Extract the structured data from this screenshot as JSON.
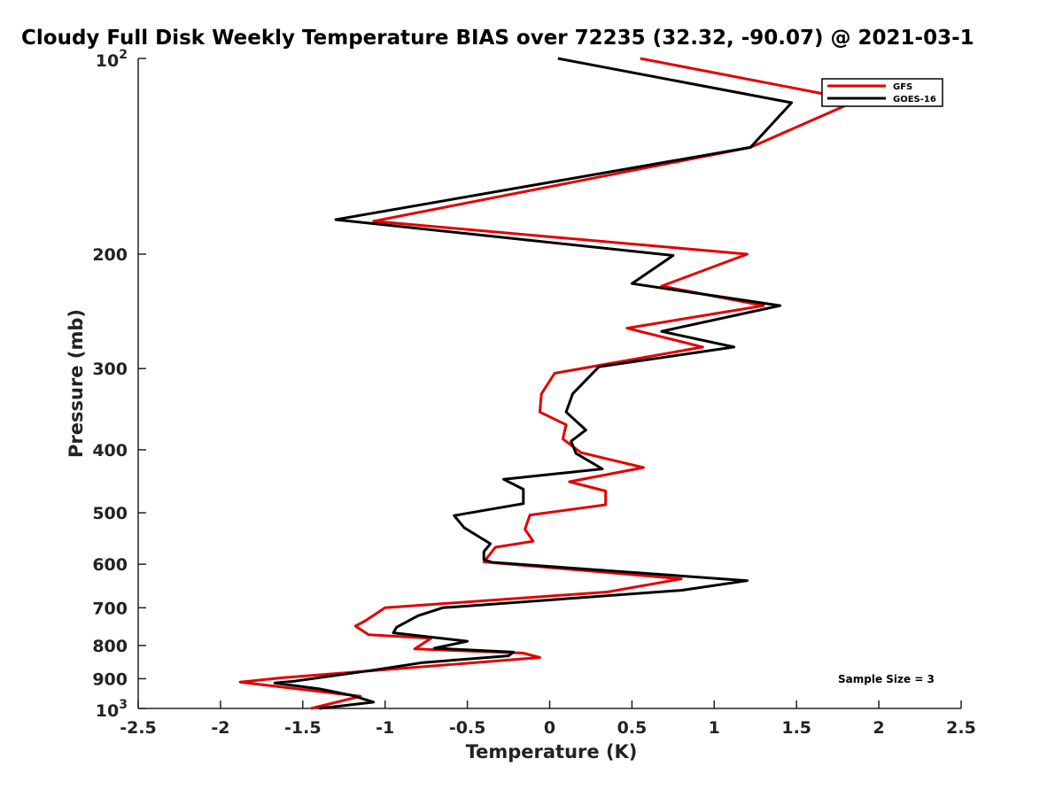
{
  "chart_data": {
    "type": "line",
    "title": "Cloudy Full Disk Weekly Temperature BIAS over 72235 (32.32, -90.07) @ 2021-03-1",
    "xlabel": "Temperature (K)",
    "ylabel": "Pressure (mb)",
    "xlim": [
      -2.5,
      2.5
    ],
    "ylim": [
      100,
      1000
    ],
    "y_scale": "log",
    "y_direction": "reversed",
    "x_ticks": [
      -2.5,
      -2,
      -1.5,
      -1,
      -0.5,
      0,
      0.5,
      1,
      1.5,
      2,
      2.5
    ],
    "x_tick_labels": [
      "-2.5",
      "-2",
      "-1.5",
      "-1",
      "-0.5",
      "0",
      "0.5",
      "1",
      "1.5",
      "2",
      "2.5"
    ],
    "y_ticks": [
      200,
      300,
      400,
      500,
      600,
      700,
      800,
      900
    ],
    "y_tick_labels": [
      "200",
      "300",
      "400",
      "500",
      "600",
      "700",
      "800",
      "900"
    ],
    "y_tick_top": {
      "base": "10",
      "exp": "2"
    },
    "y_tick_bottom": {
      "base": "10",
      "exp": "3"
    },
    "legend": {
      "placement": "top-right"
    },
    "annotation": "Sample Size = 3",
    "series": [
      {
        "name": "GFS",
        "color": "#e30000",
        "points": [
          {
            "x": 0.55,
            "p": 100
          },
          {
            "x": 1.87,
            "p": 116
          },
          {
            "x": 1.22,
            "p": 137
          },
          {
            "x": -1.07,
            "p": 178
          },
          {
            "x": 1.2,
            "p": 200
          },
          {
            "x": 0.68,
            "p": 224
          },
          {
            "x": 1.3,
            "p": 240
          },
          {
            "x": 0.47,
            "p": 260
          },
          {
            "x": 0.93,
            "p": 278
          },
          {
            "x": 0.03,
            "p": 305
          },
          {
            "x": -0.05,
            "p": 328
          },
          {
            "x": -0.06,
            "p": 350
          },
          {
            "x": 0.1,
            "p": 366
          },
          {
            "x": 0.08,
            "p": 385
          },
          {
            "x": 0.19,
            "p": 404
          },
          {
            "x": 0.57,
            "p": 426
          },
          {
            "x": 0.12,
            "p": 448
          },
          {
            "x": 0.34,
            "p": 463
          },
          {
            "x": 0.34,
            "p": 486
          },
          {
            "x": -0.12,
            "p": 504
          },
          {
            "x": -0.15,
            "p": 530
          },
          {
            "x": -0.1,
            "p": 553
          },
          {
            "x": -0.33,
            "p": 565
          },
          {
            "x": -0.4,
            "p": 595
          },
          {
            "x": 0.8,
            "p": 632
          },
          {
            "x": 0.35,
            "p": 662
          },
          {
            "x": -1.0,
            "p": 700
          },
          {
            "x": -1.12,
            "p": 733
          },
          {
            "x": -1.18,
            "p": 747
          },
          {
            "x": -1.1,
            "p": 770
          },
          {
            "x": -0.72,
            "p": 780
          },
          {
            "x": -0.82,
            "p": 810
          },
          {
            "x": -0.16,
            "p": 822
          },
          {
            "x": -0.06,
            "p": 835
          },
          {
            "x": -1.62,
            "p": 897
          },
          {
            "x": -1.88,
            "p": 911
          },
          {
            "x": -1.15,
            "p": 958
          },
          {
            "x": -1.45,
            "p": 1000
          }
        ]
      },
      {
        "name": "GOES-16",
        "color": "#000000",
        "points": [
          {
            "x": 0.05,
            "p": 100
          },
          {
            "x": 1.47,
            "p": 117
          },
          {
            "x": 1.22,
            "p": 137
          },
          {
            "x": -1.3,
            "p": 177
          },
          {
            "x": 0.75,
            "p": 201
          },
          {
            "x": 0.5,
            "p": 222
          },
          {
            "x": 1.4,
            "p": 240
          },
          {
            "x": 0.68,
            "p": 263
          },
          {
            "x": 1.12,
            "p": 278
          },
          {
            "x": 0.3,
            "p": 298
          },
          {
            "x": 0.14,
            "p": 328
          },
          {
            "x": 0.1,
            "p": 350
          },
          {
            "x": 0.22,
            "p": 373
          },
          {
            "x": 0.13,
            "p": 388
          },
          {
            "x": 0.16,
            "p": 405
          },
          {
            "x": 0.32,
            "p": 428
          },
          {
            "x": -0.28,
            "p": 444
          },
          {
            "x": -0.16,
            "p": 460
          },
          {
            "x": -0.16,
            "p": 484
          },
          {
            "x": -0.58,
            "p": 505
          },
          {
            "x": -0.52,
            "p": 527
          },
          {
            "x": -0.36,
            "p": 558
          },
          {
            "x": -0.4,
            "p": 574
          },
          {
            "x": -0.4,
            "p": 590
          },
          {
            "x": -0.35,
            "p": 596
          },
          {
            "x": 1.2,
            "p": 636
          },
          {
            "x": 0.8,
            "p": 658
          },
          {
            "x": -0.65,
            "p": 700
          },
          {
            "x": -0.8,
            "p": 720
          },
          {
            "x": -0.93,
            "p": 750
          },
          {
            "x": -0.95,
            "p": 765
          },
          {
            "x": -0.5,
            "p": 788
          },
          {
            "x": -0.7,
            "p": 808
          },
          {
            "x": -0.22,
            "p": 819
          },
          {
            "x": -0.25,
            "p": 830
          },
          {
            "x": -0.77,
            "p": 850
          },
          {
            "x": -1.07,
            "p": 873
          },
          {
            "x": -1.55,
            "p": 908
          },
          {
            "x": -1.67,
            "p": 914
          },
          {
            "x": -1.4,
            "p": 933
          },
          {
            "x": -1.2,
            "p": 955
          },
          {
            "x": -1.07,
            "p": 978
          },
          {
            "x": -1.4,
            "p": 1000
          }
        ]
      }
    ]
  }
}
